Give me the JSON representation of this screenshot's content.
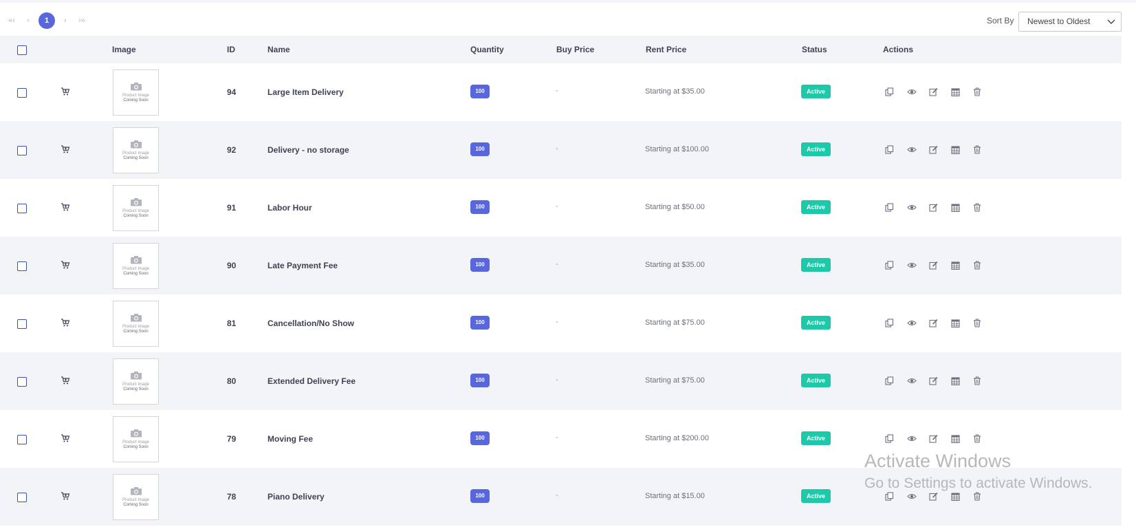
{
  "pagination": {
    "first": "«‹",
    "prev": "‹",
    "current": "1",
    "next": "›",
    "last": "›»"
  },
  "sort": {
    "label": "Sort By",
    "selected": "Newest to Oldest"
  },
  "table": {
    "headers": {
      "image": "Image",
      "id": "ID",
      "name": "Name",
      "quantity": "Quantity",
      "buy_price": "Buy Price",
      "rent_price": "Rent Price",
      "status": "Status",
      "actions": "Actions"
    },
    "placeholder_line1": "Product Image",
    "placeholder_line2": "Coming Soon",
    "rows": [
      {
        "id": "94",
        "name": "Large Item Delivery",
        "quantity": "100",
        "buy_price": "-",
        "rent_price": "Starting at $35.00",
        "status": "Active"
      },
      {
        "id": "92",
        "name": "Delivery - no storage",
        "quantity": "100",
        "buy_price": "-",
        "rent_price": "Starting at $100.00",
        "status": "Active"
      },
      {
        "id": "91",
        "name": "Labor Hour",
        "quantity": "100",
        "buy_price": "-",
        "rent_price": "Starting at $50.00",
        "status": "Active"
      },
      {
        "id": "90",
        "name": "Late Payment Fee",
        "quantity": "100",
        "buy_price": "-",
        "rent_price": "Starting at $35.00",
        "status": "Active"
      },
      {
        "id": "81",
        "name": "Cancellation/No Show",
        "quantity": "100",
        "buy_price": "-",
        "rent_price": "Starting at $75.00",
        "status": "Active"
      },
      {
        "id": "80",
        "name": "Extended Delivery Fee",
        "quantity": "100",
        "buy_price": "-",
        "rent_price": "Starting at $75.00",
        "status": "Active"
      },
      {
        "id": "79",
        "name": "Moving Fee",
        "quantity": "100",
        "buy_price": "-",
        "rent_price": "Starting at $200.00",
        "status": "Active"
      },
      {
        "id": "78",
        "name": "Piano Delivery",
        "quantity": "100",
        "buy_price": "-",
        "rent_price": "Starting at $15.00",
        "status": "Active"
      }
    ],
    "action_icons": [
      "copy-icon",
      "eye-icon",
      "edit-icon",
      "calendar-icon",
      "trash-icon"
    ]
  },
  "colors": {
    "accent": "#5867dd",
    "status_active": "#1dc9a8",
    "row_alt": "#f3f4f8"
  },
  "watermark": {
    "line1": "Activate Windows",
    "line2": "Go to Settings to activate Windows."
  }
}
